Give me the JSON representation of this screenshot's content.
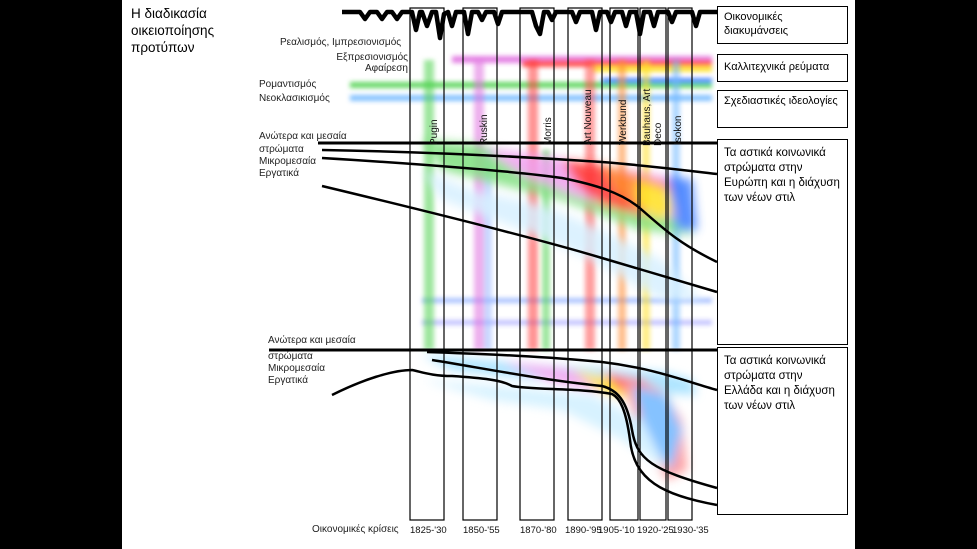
{
  "title": "Η διαδικασία οικειοποίησης προτύπων",
  "styles": {
    "realism": "Ρεαλισμός, Ιμπρεσιονισμός",
    "expressionism": "Εξπρεσιονισμός",
    "abstraction": "Αφαίρεση",
    "romanticism": "Ρομαντισμός",
    "neoclassicism": "Νεοκλασικισμός"
  },
  "classes_europe": {
    "upper": "Ανώτερα και μεσαία",
    "strata": "στρώματα",
    "petty": "Μικρομεσαία",
    "working": "Εργατικά"
  },
  "classes_greece": {
    "upper": "Ανώτερα και μεσαία",
    "strata": "στρώματα",
    "petty": "Μικρομεσαία",
    "working": "Εργατικά"
  },
  "boxes": {
    "economic": "Οικονομικές διακυμάνσεις",
    "artistic": "Καλλιτεχνικά ρεύματα",
    "design": "Σχεδιαστικές ιδεολογίες",
    "europe": "Τα αστικά κοινωνικά στρώματα στην Ευρώπη και η διάχυση των νέων στιλ",
    "greece": "Τα αστικά κοινωνικά στρώματα στην Ελλάδα και η διάχυση των νέων στιλ"
  },
  "columns": [
    "Pugin",
    "Ruskin",
    "Morris",
    "Art Nouveau",
    "Werkbund",
    "Bauhaus, Art Deco",
    "Isokon"
  ],
  "crises_label": "Οικονομικές κρίσεις",
  "periods": [
    "1825-'30",
    "1850-'55",
    "1870-'80",
    "1890-'95",
    "1905-'10",
    "1920-'25",
    "1930-'35"
  ],
  "colors": {
    "romanticism": "#4fd24f",
    "neoclassicism": "#6fb8ff",
    "realism": "#e070e0",
    "expressionism": "#ff3a3a",
    "abstraction": "#ffe020",
    "blue": "#3a7aff"
  }
}
